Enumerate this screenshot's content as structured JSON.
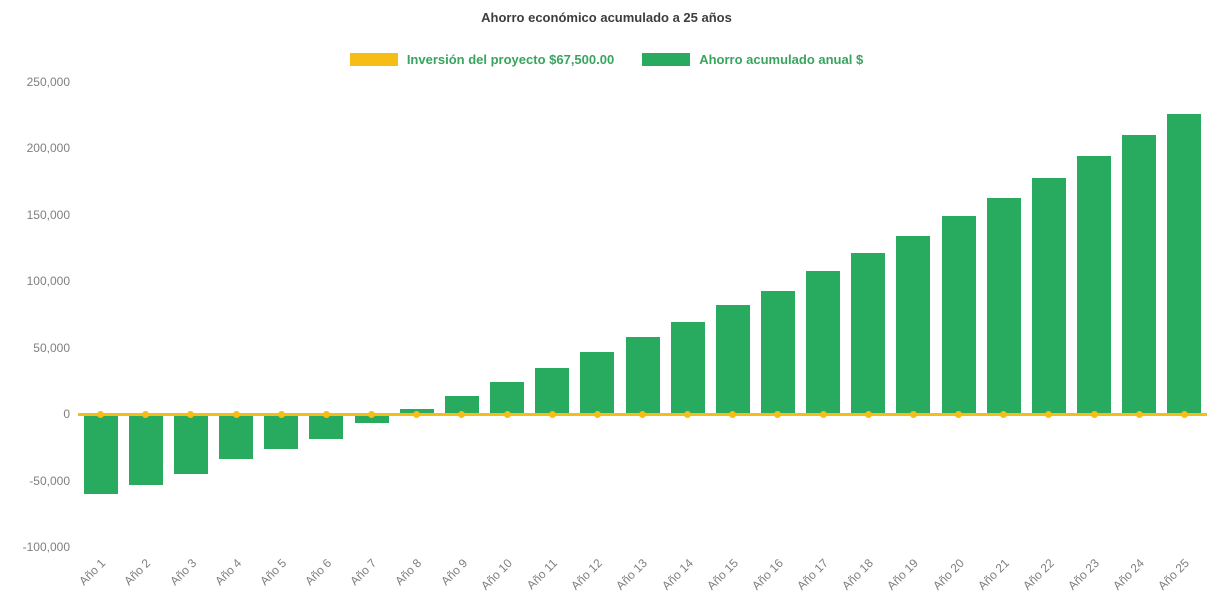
{
  "chart_data": {
    "type": "bar",
    "title": "Ahorro económico acumulado a 25 años",
    "categories": [
      "Año 1",
      "Año 2",
      "Año 3",
      "Año 4",
      "Año 5",
      "Año 6",
      "Año 7",
      "Año 8",
      "Año 9",
      "Año 10",
      "Año 11",
      "Año 12",
      "Año 13",
      "Año 14",
      "Año 15",
      "Año 16",
      "Año 17",
      "Año 18",
      "Año 19",
      "Año 20",
      "Año 21",
      "Año 22",
      "Año 23",
      "Año 24",
      "Año 25"
    ],
    "series": [
      {
        "name": "Inversión del proyecto $67,500.00",
        "type": "line",
        "color": "#f6bd16",
        "constant_value": 0
      },
      {
        "name": "Ahorro acumulado anual $",
        "type": "bar",
        "color": "#29ab5f",
        "values": [
          -60000,
          -53000,
          -45000,
          -34000,
          -26000,
          -19000,
          -7000,
          4000,
          14000,
          24000,
          35000,
          47000,
          58000,
          69000,
          82000,
          93000,
          108000,
          121000,
          134000,
          149000,
          163000,
          178000,
          194000,
          210000,
          226000
        ]
      }
    ],
    "ylim": [
      -100000,
      250000
    ],
    "yticks": [
      {
        "value": 250000,
        "label": "250,000"
      },
      {
        "value": 200000,
        "label": "200,000"
      },
      {
        "value": 150000,
        "label": "150,000"
      },
      {
        "value": 100000,
        "label": "100,000"
      },
      {
        "value": 50000,
        "label": "50,000"
      },
      {
        "value": 0,
        "label": "0"
      },
      {
        "value": -50000,
        "label": "-50,000"
      },
      {
        "value": -100000,
        "label": "-100,000"
      }
    ],
    "grid": false,
    "legend_position": "top",
    "x_label_rotation": -45
  }
}
